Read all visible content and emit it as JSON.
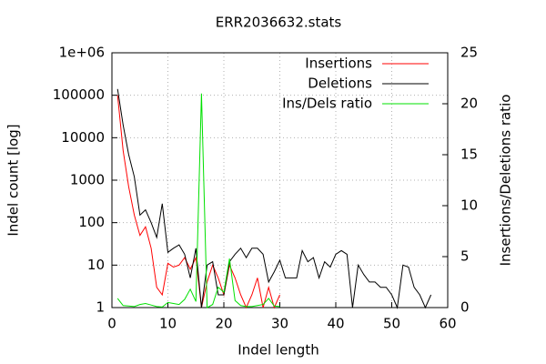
{
  "chart_data": {
    "type": "line",
    "title": "ERR2036632.stats",
    "x_label": "Indel length",
    "y_label": "Indel count [log]",
    "y2_label": "Insertions/Deletions ratio",
    "x": [
      1,
      2,
      3,
      4,
      5,
      6,
      7,
      8,
      9,
      10,
      11,
      12,
      13,
      14,
      15,
      16,
      17,
      18,
      19,
      20,
      21,
      22,
      23,
      24,
      25,
      26,
      27,
      28,
      29,
      30,
      31,
      32,
      33,
      34,
      35,
      36,
      37,
      38,
      39,
      40,
      41,
      42,
      43,
      44,
      45,
      46,
      47,
      48,
      49,
      50,
      51,
      52,
      53,
      54,
      55,
      56,
      57
    ],
    "series": [
      {
        "name": "Insertions",
        "color": "#ff0000",
        "axis": "y",
        "values": [
          100000,
          5000,
          700,
          150,
          50,
          80,
          25,
          3,
          2,
          11,
          9,
          10,
          15,
          8,
          15,
          1,
          4,
          10,
          5,
          2,
          10,
          5,
          2,
          1,
          2,
          5,
          1,
          3,
          1,
          2,
          null,
          null,
          null,
          null,
          null,
          null,
          null,
          null,
          null,
          null,
          null,
          null,
          null,
          null,
          null,
          null,
          null,
          null,
          null,
          null,
          null,
          null,
          null,
          null,
          null,
          null,
          null
        ]
      },
      {
        "name": "Deletions",
        "color": "#000000",
        "axis": "y",
        "values": [
          140000,
          20000,
          4000,
          1200,
          150,
          200,
          100,
          45,
          280,
          20,
          25,
          30,
          18,
          5,
          25,
          1,
          10,
          12,
          2,
          2,
          12,
          18,
          25,
          15,
          25,
          25,
          18,
          4,
          7,
          13,
          5,
          5,
          5,
          22,
          12,
          15,
          5,
          12,
          9,
          18,
          22,
          18,
          1,
          10,
          6,
          4,
          4,
          3,
          3,
          2,
          1,
          10,
          9,
          3,
          2,
          1,
          2
        ]
      },
      {
        "name": "Ins/Dels ratio",
        "color": "#00e000",
        "axis": "y2",
        "values": [
          0.9,
          0.2,
          0.15,
          0.1,
          0.3,
          0.4,
          0.25,
          0.1,
          0.05,
          0.5,
          0.4,
          0.3,
          0.8,
          1.8,
          0.6,
          21,
          0,
          0.3,
          2.0,
          1.5,
          4.8,
          0.7,
          0.2,
          0.1,
          0.1,
          0.2,
          0.3,
          0.9,
          0.15,
          0.1,
          null,
          null,
          0.05,
          null,
          null,
          null,
          null,
          null,
          null,
          null,
          null,
          null,
          null,
          null,
          null,
          null,
          null,
          null,
          null,
          null,
          null,
          null,
          null,
          null,
          null,
          null,
          null
        ]
      }
    ],
    "xlim": [
      0,
      60
    ],
    "xticks": [
      0,
      10,
      20,
      30,
      40,
      50,
      60
    ],
    "ylim": [
      1,
      1000000
    ],
    "log_y": true,
    "yticks": [
      1,
      10,
      100,
      1000,
      10000,
      100000,
      {
        "value": 1000000,
        "label": "1e+06"
      }
    ],
    "y2lim": [
      0,
      25
    ],
    "y2ticks": [
      0,
      5,
      10,
      15,
      20,
      25
    ],
    "grid": true,
    "legend": "top-right"
  }
}
